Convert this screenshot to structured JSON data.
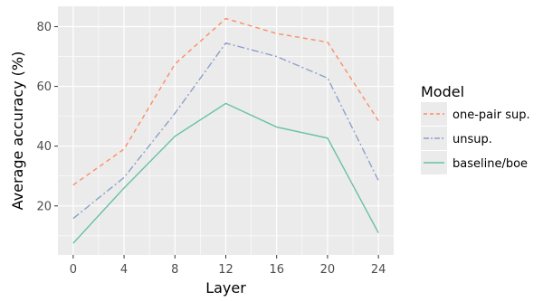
{
  "chart_data": {
    "type": "line",
    "xlabel": "Layer",
    "ylabel": "Average accuracy (%)",
    "x": [
      0,
      4,
      8,
      12,
      16,
      20,
      24
    ],
    "xticks": [
      0,
      4,
      8,
      12,
      16,
      20,
      24
    ],
    "yticks": [
      20,
      40,
      60,
      80
    ],
    "xlim": [
      -1.2,
      25.2
    ],
    "ylim": [
      3.6,
      86.8
    ],
    "grid": true,
    "legend": {
      "title": "Model",
      "position": "right"
    },
    "series": [
      {
        "name": "one-pair sup.",
        "color": "#fc8d62",
        "linestyle": "dashed",
        "values": [
          27.0,
          39.0,
          67.5,
          82.7,
          77.7,
          74.8,
          48.5
        ]
      },
      {
        "name": "unsup.",
        "color": "#8da0cb",
        "linestyle": "dashdot",
        "values": [
          15.8,
          29.5,
          51.0,
          74.5,
          70.0,
          62.8,
          28.5
        ]
      },
      {
        "name": "baseline/boe",
        "color": "#66c2a5",
        "linestyle": "solid",
        "values": [
          7.5,
          26.0,
          43.3,
          54.3,
          46.4,
          42.7,
          11.0
        ]
      }
    ]
  }
}
